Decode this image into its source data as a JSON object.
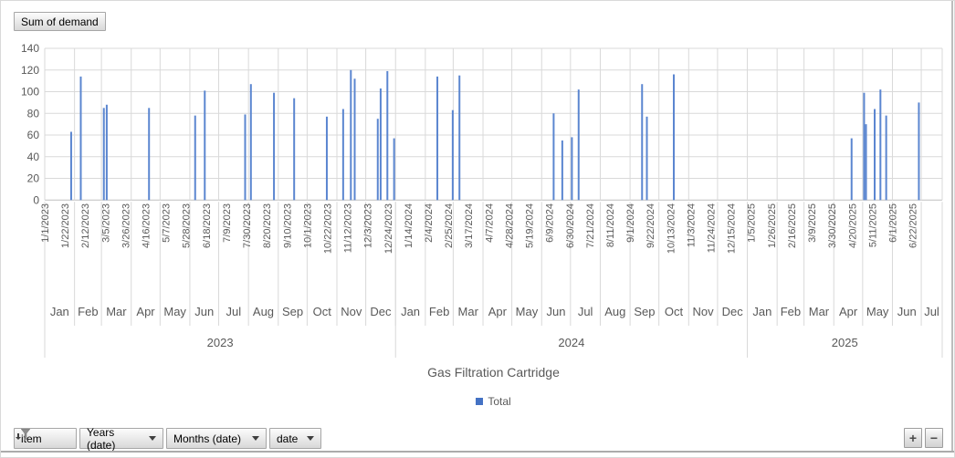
{
  "pivot": {
    "value_field_button": "Sum of demand",
    "axis_field_buttons": [
      {
        "label": "item",
        "filtered": true
      },
      {
        "label": "Years (date)",
        "filtered": false
      },
      {
        "label": "Months (date)",
        "filtered": false
      },
      {
        "label": "date",
        "filtered": false
      }
    ],
    "expand_button": "+",
    "collapse_button": "−"
  },
  "colors": {
    "bar": "#5B86D0",
    "legend_marker": "#4472C4",
    "gridline": "#D9D9D9",
    "axis_line": "#BFBFBF",
    "label_text": "#595959",
    "button_border": "#A6A6A6"
  },
  "chart_data": {
    "type": "bar",
    "title": "Gas Filtration Cartridge",
    "legend": [
      {
        "name": "Total"
      }
    ],
    "y_axis": {
      "min": 0,
      "max": 140,
      "tick_step": 20,
      "ticks": [
        "0",
        "20",
        "40",
        "60",
        "80",
        "100",
        "120",
        "140"
      ]
    },
    "x_axis": {
      "type": "date",
      "start": "1/1/2023",
      "label_interval_days": 21,
      "labels": [
        "1/1/2023",
        "1/22/2023",
        "2/12/2023",
        "3/5/2023",
        "3/26/2023",
        "4/16/2023",
        "5/7/2023",
        "5/28/2023",
        "6/18/2023",
        "7/9/2023",
        "7/30/2023",
        "8/20/2023",
        "9/10/2023",
        "10/1/2023",
        "10/22/2023",
        "11/12/2023",
        "12/3/2023",
        "12/24/2023",
        "1/14/2024",
        "2/4/2024",
        "2/25/2024",
        "3/17/2024",
        "4/7/2024",
        "4/28/2024",
        "5/19/2024",
        "6/9/2024",
        "6/30/2024",
        "7/21/2024",
        "8/11/2024",
        "9/1/2024",
        "9/22/2024",
        "10/13/2024",
        "11/3/2024",
        "11/24/2024",
        "12/15/2024",
        "1/5/2025",
        "1/26/2025",
        "2/16/2025",
        "3/9/2025",
        "3/30/2025",
        "4/20/2025",
        "5/11/2025",
        "6/1/2025",
        "6/22/2025"
      ],
      "months": [
        {
          "label": "Jan",
          "days": 31
        },
        {
          "label": "Feb",
          "days": 28
        },
        {
          "label": "Mar",
          "days": 31
        },
        {
          "label": "Apr",
          "days": 30
        },
        {
          "label": "May",
          "days": 31
        },
        {
          "label": "Jun",
          "days": 30
        },
        {
          "label": "Jul",
          "days": 31
        },
        {
          "label": "Aug",
          "days": 31
        },
        {
          "label": "Sep",
          "days": 30
        },
        {
          "label": "Oct",
          "days": 31
        },
        {
          "label": "Nov",
          "days": 30
        },
        {
          "label": "Dec",
          "days": 31
        },
        {
          "label": "Jan",
          "days": 31
        },
        {
          "label": "Feb",
          "days": 29
        },
        {
          "label": "Mar",
          "days": 31
        },
        {
          "label": "Apr",
          "days": 30
        },
        {
          "label": "May",
          "days": 31
        },
        {
          "label": "Jun",
          "days": 30
        },
        {
          "label": "Jul",
          "days": 31
        },
        {
          "label": "Aug",
          "days": 31
        },
        {
          "label": "Sep",
          "days": 30
        },
        {
          "label": "Oct",
          "days": 31
        },
        {
          "label": "Nov",
          "days": 30
        },
        {
          "label": "Dec",
          "days": 31
        },
        {
          "label": "Jan",
          "days": 31
        },
        {
          "label": "Feb",
          "days": 28
        },
        {
          "label": "Mar",
          "days": 31
        },
        {
          "label": "Apr",
          "days": 30
        },
        {
          "label": "May",
          "days": 31
        },
        {
          "label": "Jun",
          "days": 30
        },
        {
          "label": "Jul",
          "days": 31
        }
      ],
      "years": [
        {
          "label": "2023",
          "days": 365
        },
        {
          "label": "2024",
          "days": 366
        },
        {
          "label": "2025",
          "days": 212
        }
      ]
    },
    "series": [
      {
        "name": "Total",
        "points": [
          {
            "date": "1/28/2023",
            "value": 63
          },
          {
            "date": "2/7/2023",
            "value": 114
          },
          {
            "date": "3/3/2023",
            "value": 85
          },
          {
            "date": "3/6/2023",
            "value": 88
          },
          {
            "date": "4/19/2023",
            "value": 85
          },
          {
            "date": "6/6/2023",
            "value": 78
          },
          {
            "date": "6/16/2023",
            "value": 101
          },
          {
            "date": "7/28/2023",
            "value": 79
          },
          {
            "date": "8/3/2023",
            "value": 107
          },
          {
            "date": "8/27/2023",
            "value": 99
          },
          {
            "date": "9/17/2023",
            "value": 94
          },
          {
            "date": "10/21/2023",
            "value": 77
          },
          {
            "date": "11/7/2023",
            "value": 84
          },
          {
            "date": "11/15/2023",
            "value": 120
          },
          {
            "date": "11/19/2023",
            "value": 112
          },
          {
            "date": "12/13/2023",
            "value": 75
          },
          {
            "date": "12/16/2023",
            "value": 103
          },
          {
            "date": "12/23/2023",
            "value": 119
          },
          {
            "date": "12/30/2023",
            "value": 57
          },
          {
            "date": "2/13/2024",
            "value": 114
          },
          {
            "date": "2/29/2024",
            "value": 83
          },
          {
            "date": "3/7/2024",
            "value": 115
          },
          {
            "date": "6/13/2024",
            "value": 80
          },
          {
            "date": "6/22/2024",
            "value": 55
          },
          {
            "date": "7/2/2024",
            "value": 58
          },
          {
            "date": "7/9/2024",
            "value": 102
          },
          {
            "date": "9/13/2024",
            "value": 107
          },
          {
            "date": "9/18/2024",
            "value": 77
          },
          {
            "date": "10/16/2024",
            "value": 116
          },
          {
            "date": "4/19/2025",
            "value": 57
          },
          {
            "date": "5/2/2025",
            "value": 99
          },
          {
            "date": "5/4/2025",
            "value": 70
          },
          {
            "date": "5/13/2025",
            "value": 84
          },
          {
            "date": "5/19/2025",
            "value": 102
          },
          {
            "date": "5/25/2025",
            "value": 78
          },
          {
            "date": "6/28/2025",
            "value": 90
          }
        ]
      }
    ]
  }
}
